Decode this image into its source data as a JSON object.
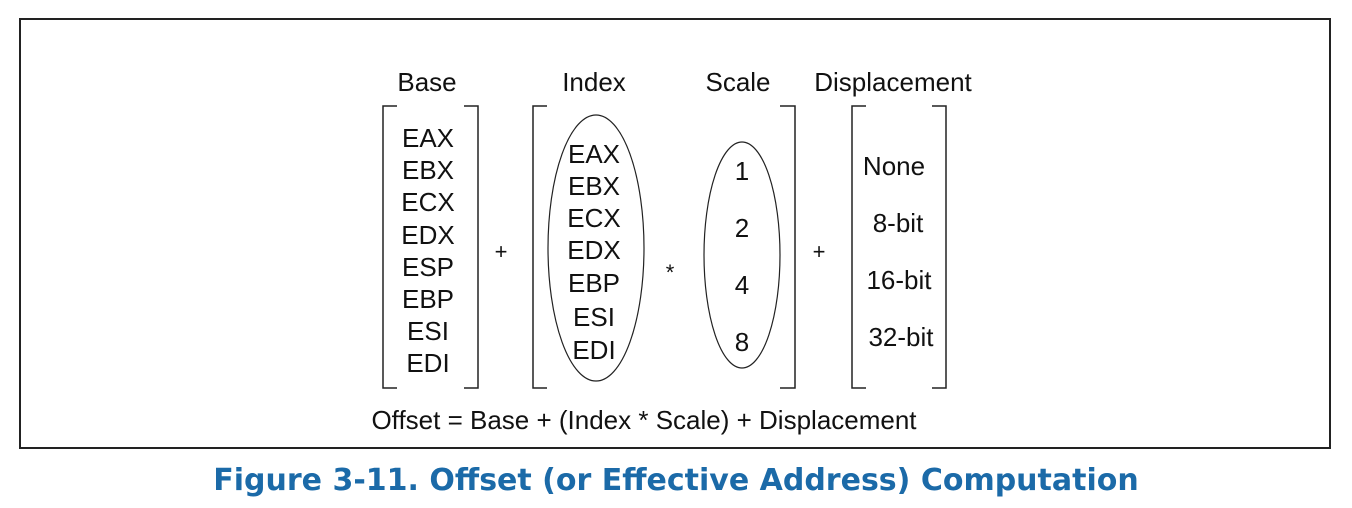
{
  "diagram": {
    "headers": {
      "base": "Base",
      "index": "Index",
      "scale": "Scale",
      "displacement": "Displacement"
    },
    "base_registers": [
      "EAX",
      "EBX",
      "ECX",
      "EDX",
      "ESP",
      "EBP",
      "ESI",
      "EDI"
    ],
    "index_registers": [
      "EAX",
      "EBX",
      "ECX",
      "EDX",
      "EBP",
      "ESI",
      "EDI"
    ],
    "scale_values": [
      "1",
      "2",
      "4",
      "8"
    ],
    "displacement_values": [
      "None",
      "8-bit",
      "16-bit",
      "32-bit"
    ],
    "operators": {
      "plus_1": "+",
      "times": "*",
      "plus_2": "+"
    },
    "formula": "Offset = Base + (Index * Scale) + Displacement"
  },
  "caption": "Figure 3-11.  Offset (or Effective Address) Computation"
}
